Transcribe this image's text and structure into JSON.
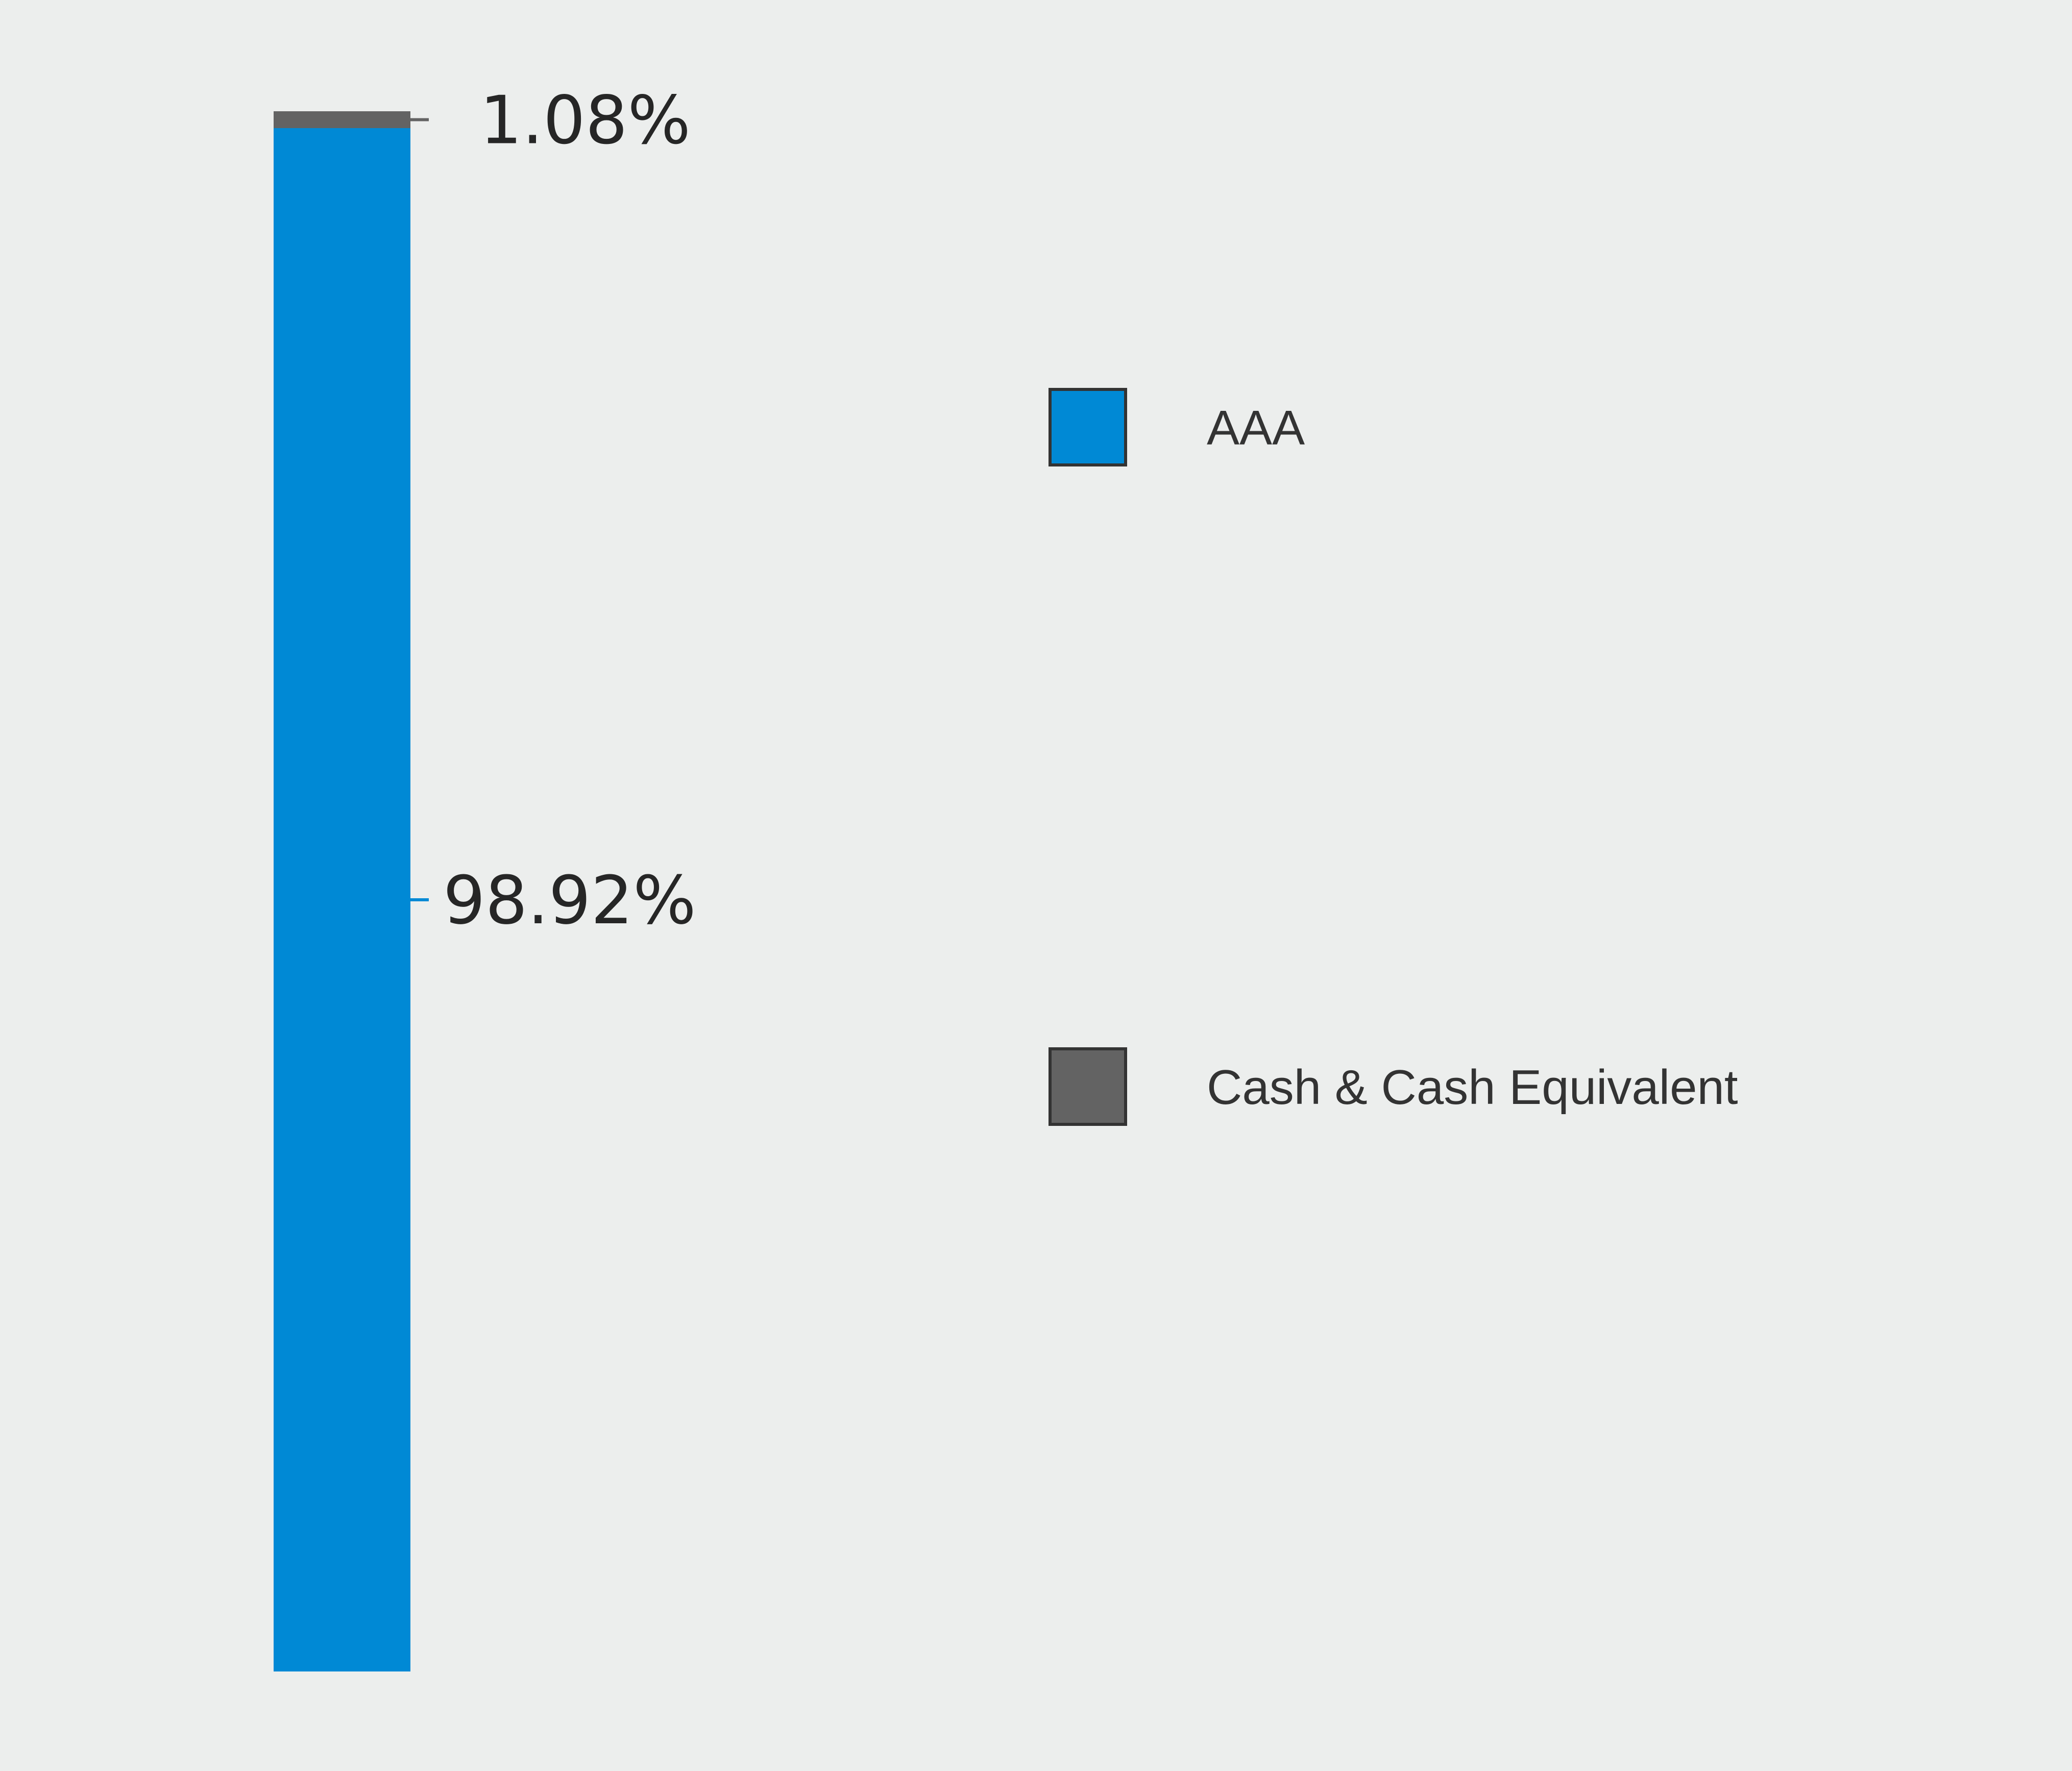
{
  "chart_data": {
    "type": "bar",
    "stacked": true,
    "categories": [
      ""
    ],
    "series": [
      {
        "name": "AAA",
        "values": [
          98.92
        ],
        "label": "98.92%",
        "color": "#0089d5"
      },
      {
        "name": "Cash & Cash Equivalent",
        "values": [
          1.08
        ],
        "label": "1.08%",
        "color": "#636363"
      }
    ],
    "ylim": [
      0,
      100
    ],
    "grid": false,
    "legend": "right",
    "title": "",
    "xlabel": "",
    "ylabel": ""
  },
  "colors": {
    "background": "#eceeed",
    "legend_border": "#333333"
  }
}
